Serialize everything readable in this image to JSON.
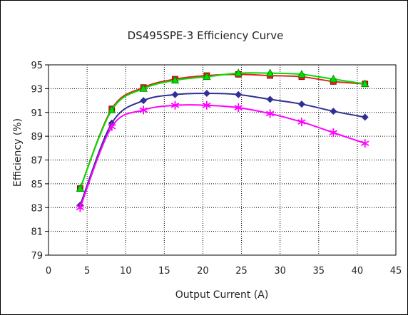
{
  "chart_data": {
    "type": "line",
    "title": "DS495SPE-3 Efficiency Curve",
    "xlabel": "Output Current (A)",
    "ylabel": "Efficiency (%)",
    "xlim": [
      0,
      45
    ],
    "ylim": [
      79,
      95
    ],
    "xticks": [
      "0",
      "5",
      "10",
      "15",
      "20",
      "25",
      "30",
      "35",
      "40",
      "45"
    ],
    "yticks": [
      "79",
      "81",
      "83",
      "85",
      "87",
      "89",
      "91",
      "93",
      "95"
    ],
    "grid": true,
    "legend": "none",
    "series": [
      {
        "color": "#e8201f",
        "marker": "square",
        "x": [
          4.1,
          8.2,
          12.3,
          16.4,
          20.5,
          24.6,
          28.7,
          32.8,
          36.9,
          41.0
        ],
        "y": [
          84.6,
          91.3,
          93.1,
          93.8,
          94.1,
          94.2,
          94.1,
          94.0,
          93.6,
          93.4
        ]
      },
      {
        "color": "#00e000",
        "marker": "triangle",
        "x": [
          4.1,
          8.2,
          12.3,
          16.4,
          20.5,
          24.6,
          28.7,
          32.8,
          36.9,
          41.0
        ],
        "y": [
          84.6,
          91.2,
          93.0,
          93.7,
          94.0,
          94.3,
          94.3,
          94.2,
          93.8,
          93.4
        ]
      },
      {
        "color": "#2e3192",
        "marker": "diamond",
        "x": [
          4.1,
          8.2,
          12.3,
          16.4,
          20.5,
          24.6,
          28.7,
          32.8,
          36.9,
          41.0
        ],
        "y": [
          83.2,
          90.1,
          92.0,
          92.5,
          92.6,
          92.5,
          92.1,
          91.7,
          91.1,
          90.6
        ]
      },
      {
        "color": "#ff00ff",
        "marker": "asterisk",
        "x": [
          4.1,
          8.2,
          12.3,
          16.4,
          20.5,
          24.6,
          28.7,
          32.8,
          36.9,
          41.0
        ],
        "y": [
          83.0,
          89.8,
          91.2,
          91.6,
          91.6,
          91.4,
          90.9,
          90.2,
          89.3,
          88.4
        ]
      }
    ]
  }
}
